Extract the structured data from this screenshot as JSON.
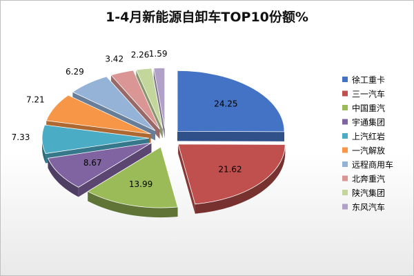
{
  "chart_data": {
    "type": "pie",
    "title": "1-4月新能源自卸车TOP10份额%",
    "labels": [
      "徐工重卡",
      "三一汽车",
      "中国重汽",
      "宇通集团",
      "上汽红岩",
      "一汽解放",
      "远程商用车",
      "北奔重汽",
      "陕汽集团",
      "东风汽车"
    ],
    "values": [
      24.25,
      21.62,
      13.99,
      8.67,
      7.33,
      7.21,
      6.29,
      3.42,
      2.26,
      1.59
    ],
    "value_labels": [
      "24.25",
      "21.62",
      "13.99",
      "8.67",
      "7.33",
      "7.21",
      "6.29",
      "3.42",
      "2.26",
      "1.59"
    ],
    "colors": [
      "#4472C4",
      "#C0504D",
      "#9BBB59",
      "#8064A2",
      "#4BACC6",
      "#F79646",
      "#95B3D7",
      "#DA9694",
      "#C3D69B",
      "#B1A0C7"
    ],
    "exploded": true,
    "three_d": true,
    "legend_position": "right"
  }
}
